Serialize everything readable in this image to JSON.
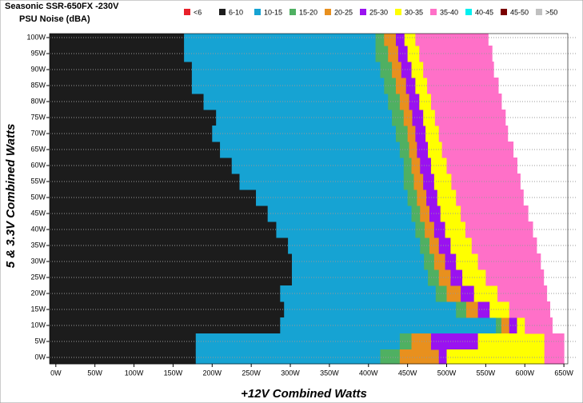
{
  "chart_data": {
    "type": "heatmap-bands",
    "title": "Seasonic SSR-650FX -230V",
    "subtitle": "PSU Noise (dBA)",
    "x_label": "+12V Combined Watts",
    "y_label": "5 & 3.3V Combined Watts",
    "rows": [
      0,
      5,
      10,
      15,
      20,
      25,
      30,
      35,
      40,
      45,
      50,
      55,
      60,
      65,
      70,
      75,
      80,
      85,
      90,
      95,
      100
    ],
    "xlim": [
      -8,
      655
    ],
    "ylim": [
      -2,
      101.25
    ],
    "xticks": [
      {
        "value": 0,
        "label": "0W"
      },
      {
        "value": 50,
        "label": "50W"
      },
      {
        "value": 100,
        "label": "100W"
      },
      {
        "value": 150,
        "label": "150W"
      },
      {
        "value": 200,
        "label": "200W"
      },
      {
        "value": 250,
        "label": "250W"
      },
      {
        "value": 300,
        "label": "300W"
      },
      {
        "value": 350,
        "label": "350W"
      },
      {
        "value": 400,
        "label": "400W"
      },
      {
        "value": 450,
        "label": "450W"
      },
      {
        "value": 500,
        "label": "500W"
      },
      {
        "value": 550,
        "label": "550W"
      },
      {
        "value": 600,
        "label": "600W"
      },
      {
        "value": 650,
        "label": "650W"
      }
    ],
    "yticks": [
      {
        "value": 0,
        "label": "0W"
      },
      {
        "value": 5,
        "label": "5W"
      },
      {
        "value": 10,
        "label": "10W"
      },
      {
        "value": 15,
        "label": "15W"
      },
      {
        "value": 20,
        "label": "20W"
      },
      {
        "value": 25,
        "label": "25W"
      },
      {
        "value": 30,
        "label": "30W"
      },
      {
        "value": 35,
        "label": "35W"
      },
      {
        "value": 40,
        "label": "40W"
      },
      {
        "value": 45,
        "label": "45W"
      },
      {
        "value": 50,
        "label": "50W"
      },
      {
        "value": 55,
        "label": "55W"
      },
      {
        "value": 60,
        "label": "60W"
      },
      {
        "value": 65,
        "label": "65W"
      },
      {
        "value": 70,
        "label": "70W"
      },
      {
        "value": 75,
        "label": "75W"
      },
      {
        "value": 80,
        "label": "80W"
      },
      {
        "value": 85,
        "label": "85W"
      },
      {
        "value": 90,
        "label": "90W"
      },
      {
        "value": 95,
        "label": "95W"
      },
      {
        "value": 100,
        "label": "100W"
      }
    ],
    "grid": true,
    "series": [
      {
        "name": "<6",
        "color": "#e8202a"
      },
      {
        "name": "6-10",
        "color": "#1c1c1c",
        "values": [
          179,
          179,
          287,
          292,
          287,
          302,
          302,
          297,
          282,
          271,
          256,
          235,
          225,
          210,
          200,
          205,
          189,
          174,
          174,
          164,
          164
        ]
      },
      {
        "name": "10-15",
        "color": "#16a3d3",
        "values": [
          415,
          440,
          563,
          512,
          486,
          476,
          471,
          466,
          460,
          455,
          450,
          445,
          445,
          440,
          435,
          430,
          425,
          420,
          415,
          409,
          409
        ]
      },
      {
        "name": "15-20",
        "color": "#4fb062",
        "values": [
          440,
          455,
          570,
          525,
          500,
          490,
          484,
          478,
          472,
          466,
          462,
          458,
          455,
          452,
          450,
          445,
          440,
          435,
          430,
          425,
          420
        ]
      },
      {
        "name": "20-25",
        "color": "#e8901e",
        "values": [
          490,
          480,
          580,
          540,
          518,
          505,
          498,
          490,
          484,
          478,
          474,
          470,
          466,
          462,
          460,
          456,
          452,
          448,
          442,
          438,
          435
        ]
      },
      {
        "name": "25-30",
        "color": "#9a12f0",
        "values": [
          500,
          540,
          590,
          555,
          535,
          520,
          512,
          505,
          498,
          492,
          488,
          484,
          480,
          476,
          473,
          470,
          465,
          460,
          455,
          450,
          446
        ]
      },
      {
        "name": "30-35",
        "color": "#ffff00",
        "values": [
          625,
          625,
          600,
          580,
          565,
          550,
          540,
          532,
          524,
          518,
          512,
          506,
          500,
          494,
          490,
          485,
          480,
          475,
          470,
          465,
          460
        ]
      },
      {
        "name": "35-40",
        "color": "#ff70c8",
        "values": [
          650,
          650,
          635,
          632,
          628,
          624,
          620,
          615,
          610,
          604,
          598,
          594,
          590,
          585,
          578,
          575,
          570,
          566,
          560,
          558,
          553
        ]
      },
      {
        "name": "40-45",
        "color": "#00f0f0"
      },
      {
        "name": "45-50",
        "color": "#7a0000"
      },
      {
        "name": ">50",
        "color": "#c0c0c0"
      }
    ]
  }
}
